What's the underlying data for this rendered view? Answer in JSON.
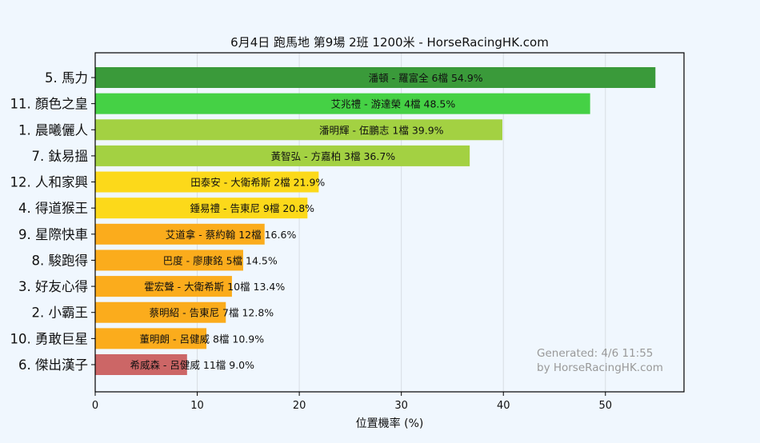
{
  "chart_data": {
    "type": "bar",
    "orientation": "horizontal",
    "title": "6月4日  跑馬地  第9場  2班  1200米 - HorseRacingHK.com",
    "xlabel": "位置機率 (%)",
    "ylabel": "",
    "xlim": [
      0,
      57.7
    ],
    "xticks": [
      0,
      10,
      20,
      30,
      40,
      50
    ],
    "grid": "vertical",
    "categories": [
      "5. 馬力",
      "11. 顏色之皇",
      "1. 晨曦儷人",
      "7. 鈦易搵",
      "12. 人和家興",
      "4. 得道猴王",
      "9. 星際快車",
      "8. 駿跑得",
      "3. 好友心得",
      "2. 小霸王",
      "10. 勇敢巨星",
      "6. 傑出漢子"
    ],
    "values": [
      54.9,
      48.5,
      39.9,
      36.7,
      21.9,
      20.8,
      16.6,
      14.5,
      13.4,
      12.8,
      10.9,
      9.0
    ],
    "bar_labels": [
      "潘頓 - 羅富全 6檔  54.9%",
      "艾兆禮 - 游達榮 4檔  48.5%",
      "潘明輝 - 伍鵬志 1檔  39.9%",
      "黃智弘 - 方嘉柏 3檔  36.7%",
      "田泰安 - 大衛希斯 2檔  21.9%",
      "鍾易禮 - 告東尼 9檔  20.8%",
      "艾道拿 - 蔡約翰 12檔  16.6%",
      "巴度 - 廖康銘 5檔  14.5%",
      "霍宏聲 - 大衛希斯 10檔  13.4%",
      "蔡明紹 - 告東尼 7檔  12.8%",
      "董明朗 - 呂健威 8檔  10.9%",
      "希威森 - 呂健威 11檔  9.0%"
    ],
    "colors": [
      "#3a9a3a",
      "#45d145",
      "#a3d142",
      "#a3d142",
      "#fcd91a",
      "#fcd91a",
      "#fbac1c",
      "#fbac1c",
      "#fbac1c",
      "#fbac1c",
      "#fbac1c",
      "#cc6666"
    ],
    "annotation": [
      "Generated: 4/6 11:55",
      "by HorseRacingHK.com"
    ]
  }
}
